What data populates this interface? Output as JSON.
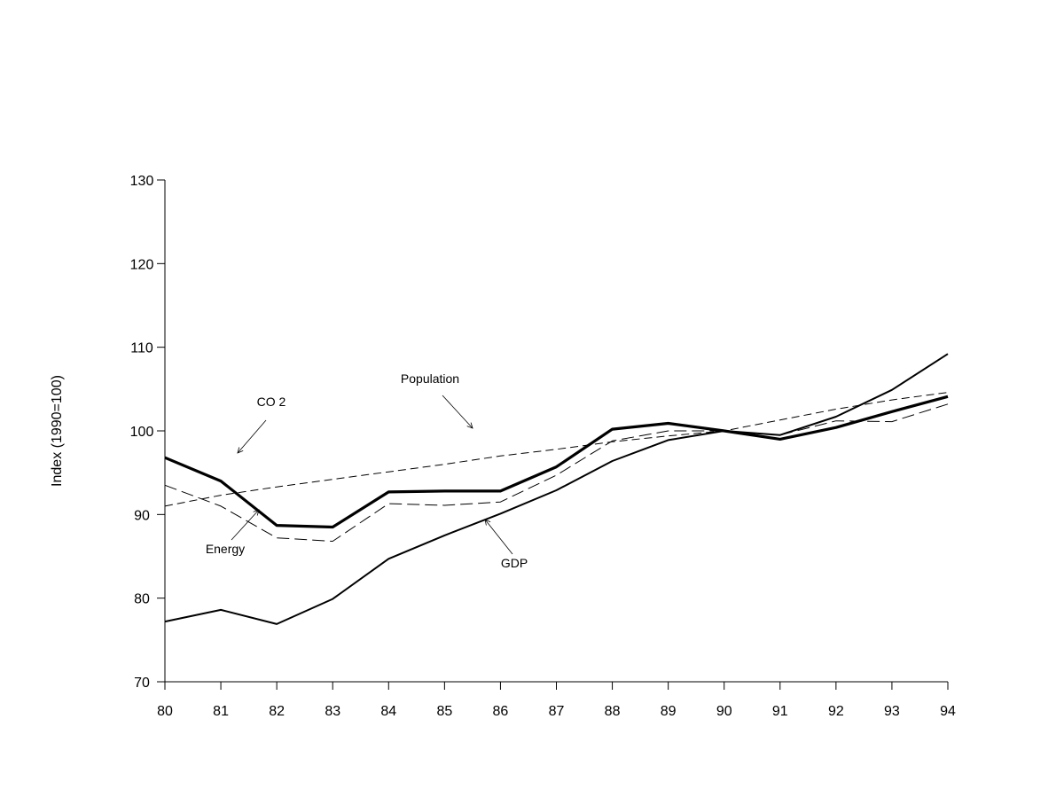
{
  "chart_data": {
    "type": "line",
    "title": "",
    "xlabel": "",
    "ylabel": "Index (1990=100)",
    "categories": [
      "80",
      "81",
      "82",
      "83",
      "84",
      "85",
      "86",
      "87",
      "88",
      "89",
      "90",
      "91",
      "92",
      "93",
      "94"
    ],
    "ylim": [
      70,
      130
    ],
    "yticks": [
      70,
      80,
      90,
      100,
      110,
      120,
      130
    ],
    "grid": false,
    "legend": "none",
    "series": [
      {
        "name": "CO 2",
        "style": "thick-solid",
        "values": [
          96.8,
          94.0,
          88.7,
          88.5,
          92.7,
          92.8,
          92.8,
          95.7,
          100.2,
          100.9,
          100.0,
          99.0,
          100.4,
          102.3,
          104.1
        ]
      },
      {
        "name": "Energy",
        "style": "dashed",
        "values": [
          93.5,
          91.0,
          87.2,
          86.8,
          91.3,
          91.1,
          91.5,
          94.7,
          98.8,
          100.0,
          100.0,
          99.5,
          101.2,
          101.1,
          103.2
        ]
      },
      {
        "name": "GDP",
        "style": "solid",
        "values": [
          77.2,
          78.6,
          76.9,
          79.9,
          84.7,
          87.5,
          90.1,
          92.9,
          96.4,
          98.9,
          100.0,
          99.5,
          101.7,
          104.9,
          109.2
        ]
      },
      {
        "name": "Population",
        "style": "fine-dashed",
        "values": [
          91.0,
          92.3,
          93.3,
          94.2,
          95.1,
          96.0,
          97.0,
          97.8,
          98.7,
          99.4,
          100.0,
          101.3,
          102.6,
          103.7,
          104.6
        ]
      }
    ],
    "annotations": [
      {
        "text": "CO 2",
        "series": "CO 2"
      },
      {
        "text": "Population",
        "series": "Population"
      },
      {
        "text": "Energy",
        "series": "Energy"
      },
      {
        "text": "GDP",
        "series": "GDP"
      }
    ]
  }
}
